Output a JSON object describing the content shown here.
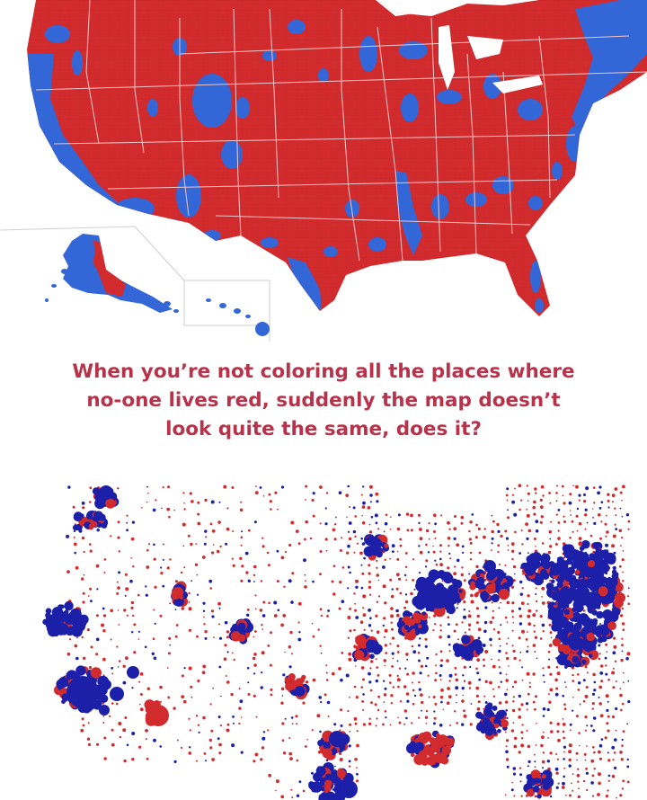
{
  "caption": {
    "lines": [
      "When you’re not coloring all the places where",
      "no-one lives red, suddenly the map doesn’t",
      "look quite the same, does it?"
    ]
  },
  "colors": {
    "red": "#d22b2e",
    "blue": "#3366d6",
    "navy": "#1c1fa8",
    "caption_text": "#b8324a",
    "state_lines": "#f0c8c8",
    "background": "#ffffff"
  },
  "maps": {
    "top": {
      "type": "county-choropleth",
      "fill_classes": [
        "red",
        "blue"
      ],
      "insets": [
        "alaska",
        "hawaii"
      ]
    },
    "bottom": {
      "type": "proportional-circles",
      "fill_classes": [
        "red",
        "navy"
      ]
    }
  }
}
